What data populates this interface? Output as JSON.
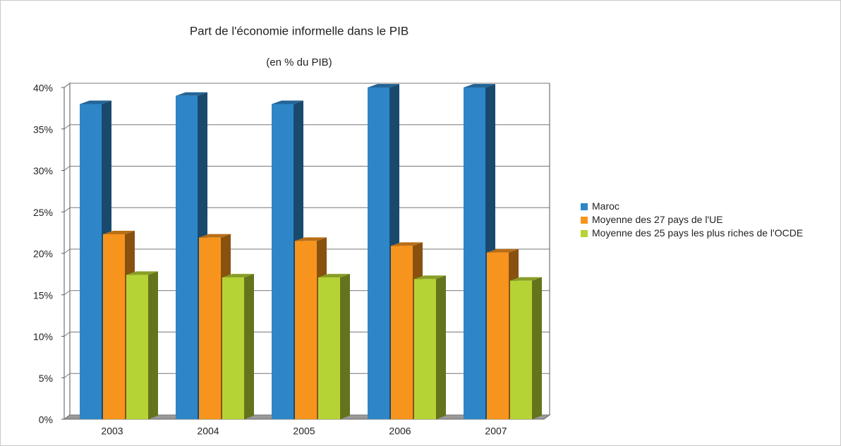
{
  "chart_data": {
    "type": "bar3d",
    "title": "Part de l'économie informelle dans le PIB",
    "subtitle": "(en % du PIB)",
    "categories": [
      "2003",
      "2004",
      "2005",
      "2006",
      "2007"
    ],
    "series": [
      {
        "name": "Maroc",
        "color": "#2e86c8",
        "values": [
          38,
          39,
          38,
          40,
          40
        ]
      },
      {
        "name": "Moyenne des 27 pays de l'UE",
        "color": "#f7941d",
        "values": [
          22.3,
          21.9,
          21.5,
          20.9,
          20.1
        ]
      },
      {
        "name": "Moyenne des 25 pays les plus riches de l'OCDE",
        "color": "#b5d334",
        "values": [
          17.4,
          17.1,
          17.1,
          16.9,
          16.7
        ]
      }
    ],
    "ylim": [
      0,
      40
    ],
    "yticks": [
      {
        "value": 0,
        "label": "0%"
      },
      {
        "value": 5,
        "label": "5%"
      },
      {
        "value": 10,
        "label": "10%"
      },
      {
        "value": 15,
        "label": "15%"
      },
      {
        "value": 20,
        "label": "20%"
      },
      {
        "value": 25,
        "label": "25%"
      },
      {
        "value": 30,
        "label": "30%"
      },
      {
        "value": 35,
        "label": "35%"
      },
      {
        "value": 40,
        "label": "40%"
      }
    ],
    "grid": true,
    "legend": "right"
  }
}
